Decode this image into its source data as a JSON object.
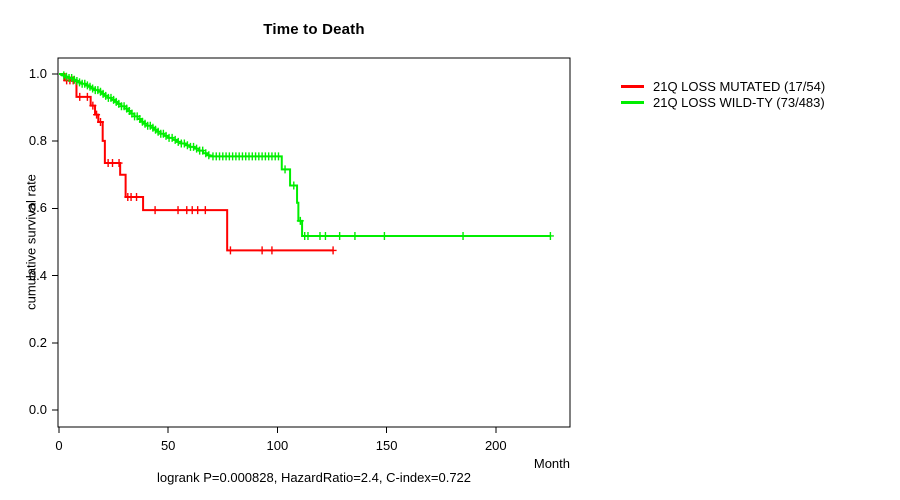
{
  "chart_data": {
    "type": "line",
    "subtype": "kaplan-meier-step",
    "title": "Time to Death",
    "xlabel": "Month",
    "ylabel": "cumulative survival rate",
    "x_ticks": [
      0,
      50,
      100,
      150,
      200
    ],
    "y_ticks": [
      "0.0",
      "0.2",
      "0.4",
      "0.6",
      "0.8",
      "1.0"
    ],
    "xlim": [
      0,
      234
    ],
    "ylim": [
      0,
      1
    ],
    "grid": false,
    "legend_position": "right-outside",
    "annotation": "logrank P=0.000828, HazardRatio=2.4, C-index=0.722",
    "series": [
      {
        "name": "21Q LOSS MUTATED (17/54)",
        "color": "#ff0000",
        "events_ratio": "17/54",
        "end_month": 125.5,
        "steps": [
          [
            0,
            1.0
          ],
          [
            2.5,
            0.981
          ],
          [
            8,
            0.932
          ],
          [
            14.5,
            0.906
          ],
          [
            16.5,
            0.879
          ],
          [
            18,
            0.857
          ],
          [
            20,
            0.801
          ],
          [
            21,
            0.735
          ],
          [
            28,
            0.7
          ],
          [
            30.5,
            0.634
          ],
          [
            38.5,
            0.595
          ],
          [
            77,
            0.475
          ]
        ],
        "censor_months": [
          3.5,
          5,
          6.5,
          9.5,
          13,
          15.5,
          17.2,
          19,
          22.5,
          24.5,
          27.5,
          31.5,
          33,
          35.5,
          44,
          54.5,
          58.5,
          61,
          63.5,
          67,
          78.5,
          93,
          97.5,
          125.5
        ]
      },
      {
        "name": "21Q LOSS WILD-TY (73/483)",
        "color": "#00ee00",
        "events_ratio": "73/483",
        "end_month": 225,
        "steps": [
          [
            0,
            1.0
          ],
          [
            1.5,
            0.996
          ],
          [
            3,
            0.992
          ],
          [
            4.5,
            0.988
          ],
          [
            6,
            0.983
          ],
          [
            7.5,
            0.979
          ],
          [
            9,
            0.975
          ],
          [
            10.5,
            0.971
          ],
          [
            12,
            0.966
          ],
          [
            13.5,
            0.962
          ],
          [
            15,
            0.957
          ],
          [
            16.5,
            0.952
          ],
          [
            18,
            0.947
          ],
          [
            19.5,
            0.941
          ],
          [
            21,
            0.935
          ],
          [
            22.5,
            0.929
          ],
          [
            24,
            0.923
          ],
          [
            25.5,
            0.917
          ],
          [
            27,
            0.911
          ],
          [
            28.5,
            0.904
          ],
          [
            30,
            0.897
          ],
          [
            31.5,
            0.89
          ],
          [
            33,
            0.882
          ],
          [
            34.5,
            0.874
          ],
          [
            36,
            0.866
          ],
          [
            37.5,
            0.858
          ],
          [
            39,
            0.852
          ],
          [
            40.5,
            0.846
          ],
          [
            42,
            0.84
          ],
          [
            43.5,
            0.834
          ],
          [
            45,
            0.828
          ],
          [
            46.5,
            0.822
          ],
          [
            48,
            0.816
          ],
          [
            50,
            0.81
          ],
          [
            52,
            0.804
          ],
          [
            54,
            0.798
          ],
          [
            56,
            0.793
          ],
          [
            58,
            0.788
          ],
          [
            60,
            0.783
          ],
          [
            62,
            0.778
          ],
          [
            64,
            0.772
          ],
          [
            66,
            0.764
          ],
          [
            68,
            0.758
          ],
          [
            69,
            0.755
          ],
          [
            102,
            0.716
          ],
          [
            105.8,
            0.668
          ],
          [
            109,
            0.617
          ],
          [
            109.6,
            0.563
          ],
          [
            111.3,
            0.518
          ]
        ],
        "censor_months": [
          2.2,
          3.4,
          4.6,
          5.8,
          7,
          8.2,
          9.4,
          10.6,
          11.8,
          13,
          14.2,
          15.4,
          16.6,
          17.8,
          19,
          20.2,
          21.4,
          22.6,
          23.8,
          25,
          26.2,
          27.4,
          28.6,
          29.8,
          31,
          32.2,
          33.4,
          34.6,
          35.8,
          37,
          38.2,
          39.4,
          40.6,
          41.8,
          43,
          44.2,
          45.4,
          46.6,
          47.8,
          49,
          50.4,
          51.8,
          53.2,
          54.6,
          56,
          57.4,
          58.8,
          60.2,
          61.6,
          63,
          64.4,
          65.8,
          67.2,
          68.6,
          70.5,
          72,
          73.5,
          75,
          76.5,
          78,
          79.5,
          81,
          82.5,
          84,
          85.5,
          87,
          88.5,
          90,
          91.5,
          93,
          94.5,
          96,
          97.5,
          99,
          100.5,
          103.5,
          107.5,
          110.5,
          112.5,
          114,
          119.5,
          122,
          128.5,
          135.5,
          149,
          185,
          225
        ]
      }
    ]
  }
}
